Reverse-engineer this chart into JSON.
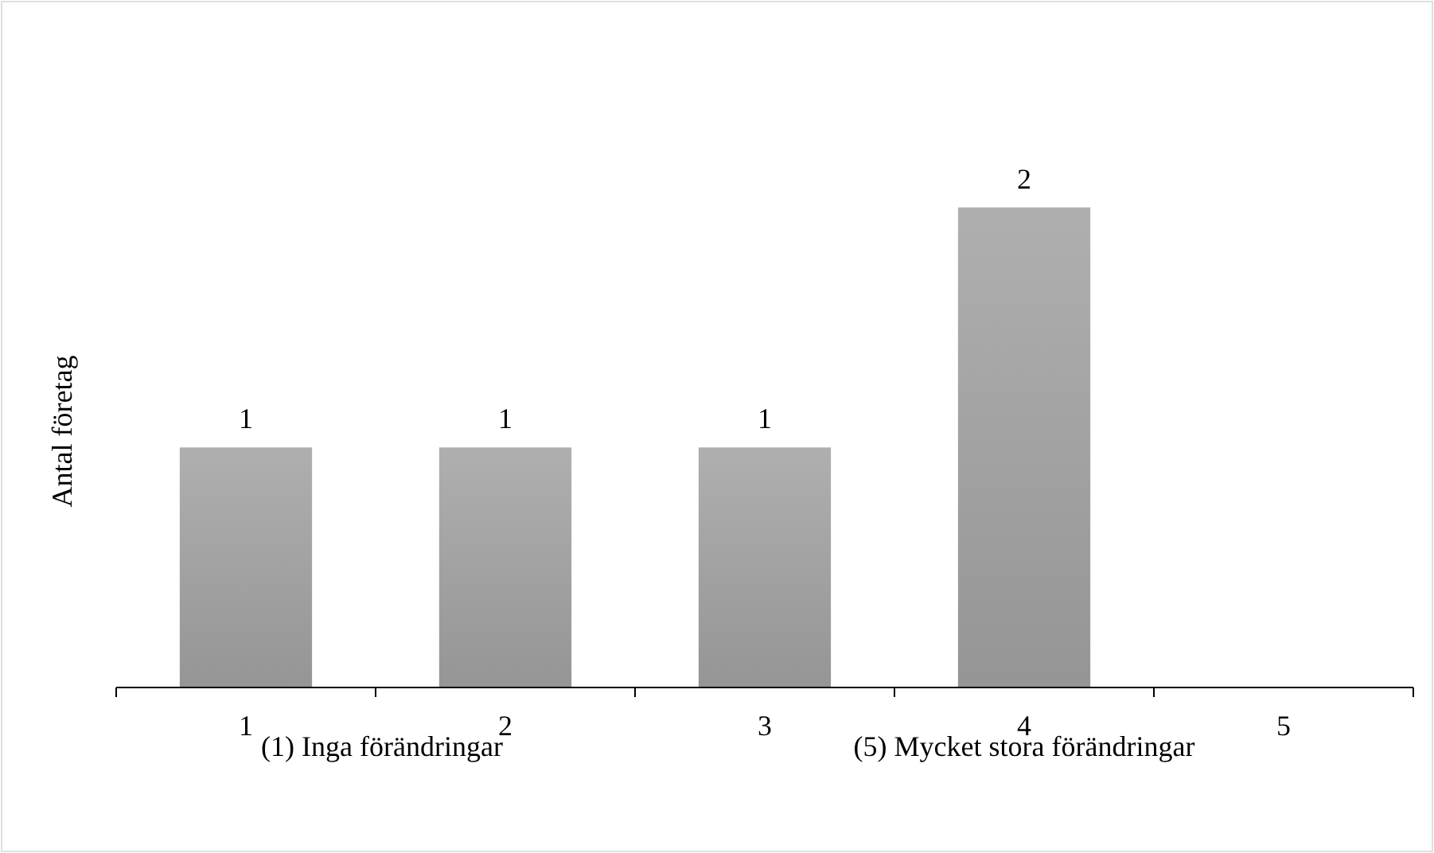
{
  "chart_data": {
    "type": "bar",
    "ylabel": "Antal företag",
    "categories": [
      "1",
      "2",
      "3",
      "4",
      "5"
    ],
    "values": [
      1,
      1,
      1,
      2,
      null
    ],
    "color": "#a6a6a6",
    "data_labels": true,
    "annotations": [
      "(1) Inga förändringar",
      "(5) Mycket stora förändringar"
    ]
  }
}
